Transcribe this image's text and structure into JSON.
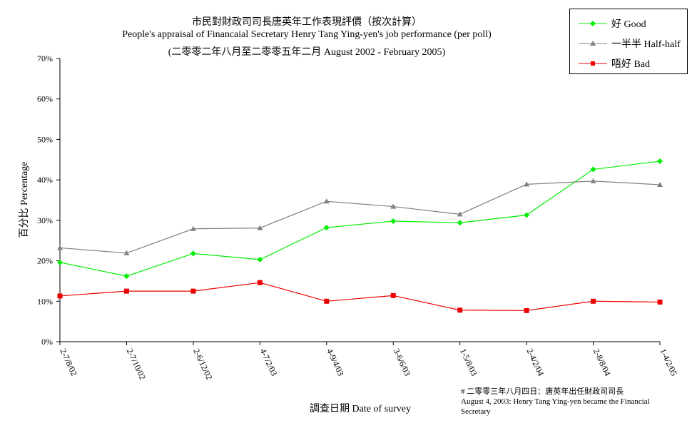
{
  "title_zh": "市民對財政司司長唐英年工作表現評價（按次計算）",
  "title_en": "People's appraisal of Financaial Secretary Henry Tang Ying-yen's job performance (per poll)",
  "subtitle": "(二零零二年八月至二零零五年二月 August 2002 - February 2005)",
  "note_line1": "# 二零零三年八月四日：唐英年出任財政司司長",
  "note_line2": "August 4, 2003: Henry Tang Ying-yen became the Financial Secretary",
  "chart_data": {
    "type": "line",
    "ylabel": "百分比 Percentage",
    "xlabel": "調查日期 Date of survey",
    "categories": [
      "2-7/8/02",
      "2-7/10/02",
      "2-6/12/02",
      "4-7/2/03",
      "4-9/4/03",
      "3-6/6/03",
      "1-5/8/03",
      "2-4/2/04",
      "2-8/8/04",
      "1-4/2/05"
    ],
    "y_ticks": [
      "0%",
      "10%",
      "20%",
      "30%",
      "40%",
      "50%",
      "60%",
      "70%"
    ],
    "ylim": [
      0,
      70
    ],
    "grid": false,
    "legend_position": "top-right",
    "series": [
      {
        "name": "好 Good",
        "color": "#00ee00",
        "marker": "diamond",
        "values": [
          19.6,
          16.2,
          21.8,
          20.3,
          28.2,
          29.8,
          29.4,
          31.3,
          42.6,
          44.6
        ]
      },
      {
        "name": "一半半 Half-half",
        "color": "#808080",
        "marker": "triangle",
        "values": [
          23.2,
          21.9,
          27.9,
          28.1,
          34.7,
          33.4,
          31.5,
          38.9,
          39.7,
          38.8
        ]
      },
      {
        "name": "唔好 Bad",
        "color": "#ee0000",
        "marker": "square",
        "values": [
          11.3,
          12.5,
          12.5,
          14.6,
          10.0,
          11.4,
          7.8,
          7.7,
          10.0,
          9.8
        ]
      }
    ]
  }
}
